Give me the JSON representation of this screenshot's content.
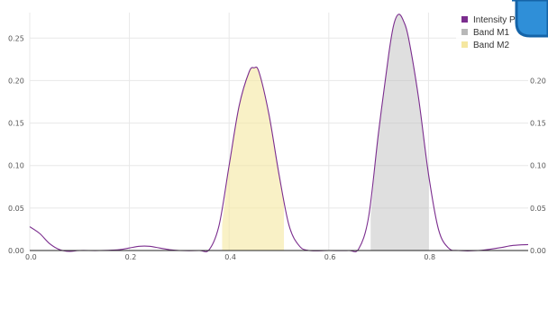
{
  "chart_data": {
    "type": "area",
    "xlim": [
      0.0,
      1.0
    ],
    "ylim": [
      0.0,
      0.28
    ],
    "x_ticks": [
      0.0,
      0.2,
      0.4,
      0.6,
      0.8
    ],
    "x_tick_labels": [
      "0.0",
      "0.2",
      "0.4",
      "0.6",
      "0.8"
    ],
    "y_ticks": [
      0.0,
      0.05,
      0.1,
      0.15,
      0.2,
      0.25
    ],
    "y_tick_labels": [
      "0.00",
      "0.05",
      "0.10",
      "0.15",
      "0.20",
      "0.25"
    ],
    "y_tick_labels_right": [
      "0.00",
      "0.05",
      "0.10",
      "0.15",
      "0.20"
    ],
    "grid": true,
    "legend_position": "top-right",
    "series": [
      {
        "name": "Intensity P",
        "kind": "line",
        "color": "#7b2d8e",
        "x": [
          0.0,
          0.02,
          0.04,
          0.06,
          0.08,
          0.1,
          0.14,
          0.18,
          0.2,
          0.22,
          0.24,
          0.26,
          0.28,
          0.3,
          0.34,
          0.36,
          0.38,
          0.4,
          0.42,
          0.44,
          0.45,
          0.46,
          0.48,
          0.5,
          0.52,
          0.54,
          0.56,
          0.6,
          0.64,
          0.66,
          0.68,
          0.7,
          0.72,
          0.73,
          0.74,
          0.75,
          0.76,
          0.78,
          0.8,
          0.82,
          0.84,
          0.86,
          0.9,
          0.94,
          0.97,
          1.0
        ],
        "y": [
          0.028,
          0.02,
          0.008,
          0.001,
          -0.001,
          0.0,
          0.0,
          0.001,
          0.003,
          0.005,
          0.005,
          0.003,
          0.001,
          0.0,
          0.0,
          0.001,
          0.03,
          0.1,
          0.17,
          0.21,
          0.215,
          0.21,
          0.16,
          0.09,
          0.03,
          0.006,
          0.0,
          0.0,
          0.0,
          0.002,
          0.04,
          0.14,
          0.23,
          0.265,
          0.278,
          0.27,
          0.25,
          0.18,
          0.09,
          0.025,
          0.003,
          0.0,
          0.0,
          0.003,
          0.006,
          0.007
        ]
      },
      {
        "name": "Band M1",
        "kind": "area",
        "color": "#b8b8b8",
        "x": [
          0.684,
          0.7,
          0.72,
          0.73,
          0.74,
          0.75,
          0.76,
          0.78,
          0.8
        ],
        "y": [
          0.04,
          0.14,
          0.23,
          0.265,
          0.278,
          0.27,
          0.25,
          0.18,
          0.09
        ]
      },
      {
        "name": "Band M2",
        "kind": "area",
        "color": "#f5e7a0",
        "x": [
          0.386,
          0.4,
          0.42,
          0.44,
          0.45,
          0.46,
          0.48,
          0.5,
          0.51
        ],
        "y": [
          0.03,
          0.1,
          0.17,
          0.21,
          0.215,
          0.21,
          0.16,
          0.09,
          0.06
        ]
      }
    ]
  }
}
